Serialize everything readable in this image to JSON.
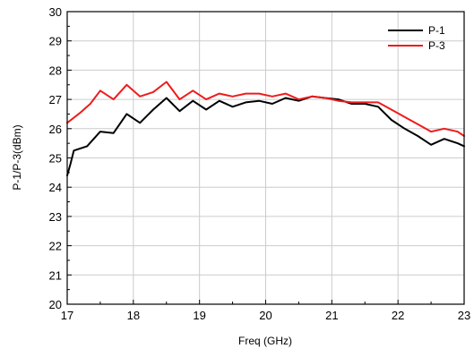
{
  "chart_data": {
    "type": "line",
    "xlabel": "Freq (GHz)",
    "ylabel": "P-1/P-3(dBm)",
    "xlim": [
      17,
      23
    ],
    "ylim": [
      20,
      30
    ],
    "xticks": [
      "17",
      "18",
      "19",
      "20",
      "21",
      "22",
      "23"
    ],
    "yticks": [
      "20",
      "21",
      "22",
      "23",
      "24",
      "25",
      "26",
      "27",
      "28",
      "29",
      "30"
    ],
    "grid": true,
    "legend_position": "top-right",
    "series": [
      {
        "name": "P-1",
        "color": "#000000",
        "x": [
          17.0,
          17.05,
          17.1,
          17.3,
          17.5,
          17.7,
          17.9,
          18.1,
          18.3,
          18.5,
          18.7,
          18.9,
          19.1,
          19.3,
          19.5,
          19.7,
          19.9,
          20.1,
          20.3,
          20.5,
          20.7,
          20.9,
          21.1,
          21.3,
          21.5,
          21.7,
          21.9,
          22.1,
          22.3,
          22.5,
          22.7,
          22.9,
          23.0
        ],
        "y": [
          24.4,
          24.8,
          25.25,
          25.4,
          25.9,
          25.85,
          26.5,
          26.2,
          26.65,
          27.05,
          26.6,
          26.95,
          26.65,
          26.95,
          26.75,
          26.9,
          26.95,
          26.85,
          27.05,
          26.95,
          27.1,
          27.05,
          27.0,
          26.85,
          26.85,
          26.75,
          26.3,
          26.0,
          25.75,
          25.45,
          25.65,
          25.5,
          25.4
        ]
      },
      {
        "name": "P-3",
        "color": "#ee1c1c",
        "x": [
          17.0,
          17.2,
          17.35,
          17.5,
          17.7,
          17.9,
          18.1,
          18.3,
          18.5,
          18.7,
          18.9,
          19.1,
          19.3,
          19.5,
          19.7,
          19.9,
          20.1,
          20.3,
          20.5,
          20.7,
          20.9,
          21.1,
          21.3,
          21.5,
          21.7,
          21.9,
          22.1,
          22.3,
          22.5,
          22.7,
          22.9,
          23.0
        ],
        "y": [
          26.2,
          26.55,
          26.85,
          27.3,
          27.0,
          27.5,
          27.1,
          27.25,
          27.6,
          27.0,
          27.3,
          27.0,
          27.2,
          27.1,
          27.2,
          27.2,
          27.1,
          27.2,
          27.0,
          27.1,
          27.05,
          26.95,
          26.9,
          26.9,
          26.9,
          26.65,
          26.4,
          26.15,
          25.9,
          26.0,
          25.9,
          25.75
        ]
      }
    ]
  }
}
